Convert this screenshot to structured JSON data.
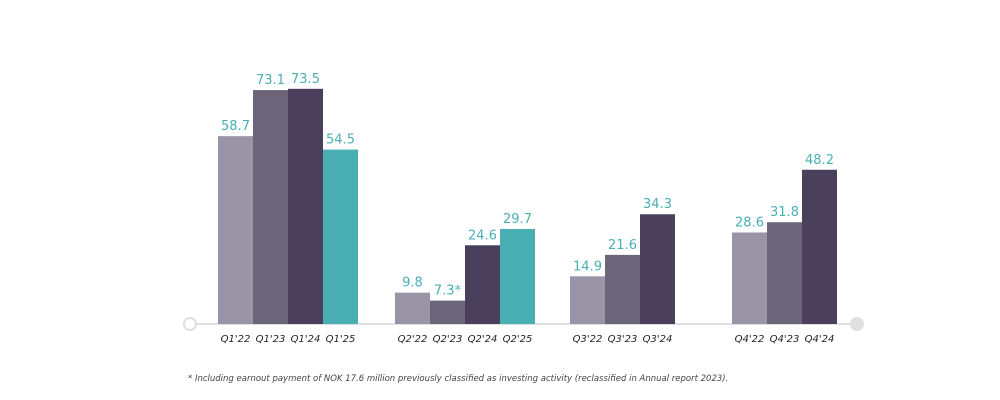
{
  "colors": {
    "y2022": "#9a94a6",
    "y2023": "#6c6479",
    "y2024": "#4a405b",
    "y2025": "#4aafb3",
    "value_label": "#4aafb3",
    "axis": "#e0e0e0",
    "tick_label": "#222222"
  },
  "chart_data": {
    "type": "bar",
    "title": "",
    "xlabel": "",
    "ylabel": "",
    "ylim": [
      0,
      80
    ],
    "grid": false,
    "legend": "none",
    "groups": [
      {
        "name": "Q1",
        "bars": [
          {
            "category": "Q1'22",
            "value": 58.7,
            "label": "58.7",
            "year": "y2022"
          },
          {
            "category": "Q1'23",
            "value": 73.1,
            "label": "73.1",
            "year": "y2023"
          },
          {
            "category": "Q1'24",
            "value": 73.5,
            "label": "73.5",
            "year": "y2024"
          },
          {
            "category": "Q1'25",
            "value": 54.5,
            "label": "54.5",
            "year": "y2025"
          }
        ]
      },
      {
        "name": "Q2",
        "bars": [
          {
            "category": "Q2'22",
            "value": 9.8,
            "label": "9.8",
            "year": "y2022"
          },
          {
            "category": "Q2'23",
            "value": 7.3,
            "label": "7.3*",
            "year": "y2023"
          },
          {
            "category": "Q2'24",
            "value": 24.6,
            "label": "24.6",
            "year": "y2024"
          },
          {
            "category": "Q2'25",
            "value": 29.7,
            "label": "29.7",
            "year": "y2025"
          }
        ]
      },
      {
        "name": "Q3",
        "bars": [
          {
            "category": "Q3'22",
            "value": 14.9,
            "label": "14.9",
            "year": "y2022"
          },
          {
            "category": "Q3'23",
            "value": 21.6,
            "label": "21.6",
            "year": "y2023"
          },
          {
            "category": "Q3'24",
            "value": 34.3,
            "label": "34.3",
            "year": "y2024"
          }
        ]
      },
      {
        "name": "Q4",
        "bars": [
          {
            "category": "Q4'22",
            "value": 28.6,
            "label": "28.6",
            "year": "y2022"
          },
          {
            "category": "Q4'23",
            "value": 31.8,
            "label": "31.8",
            "year": "y2023"
          },
          {
            "category": "Q4'24",
            "value": 48.2,
            "label": "48.2",
            "year": "y2024"
          }
        ]
      }
    ]
  },
  "footnote": "* Including earnout payment of NOK 17.6 million previously classified as investing activity (reclassified in Annual report 2023)."
}
